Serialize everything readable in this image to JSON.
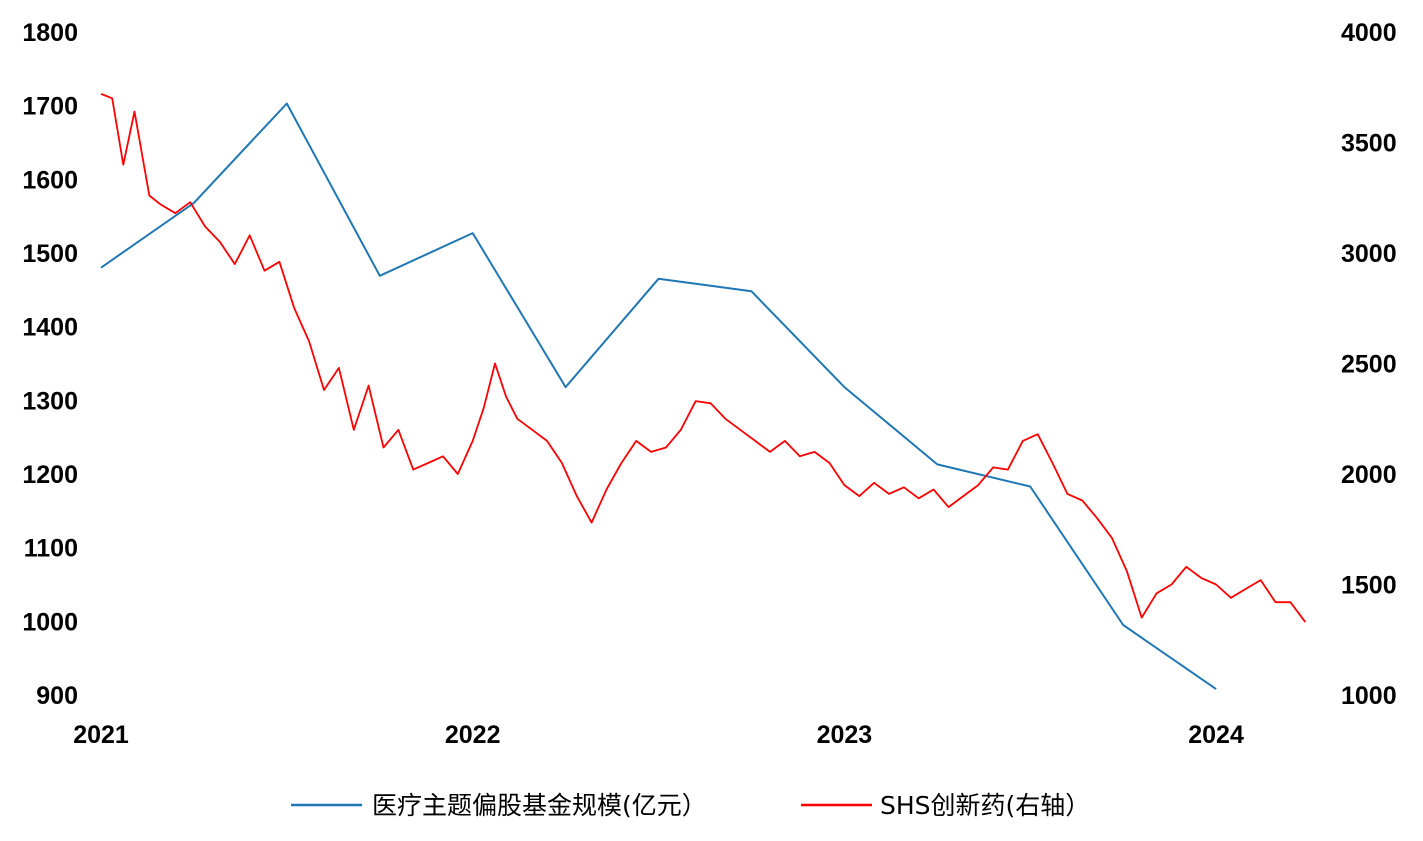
{
  "chart_data": {
    "type": "line",
    "title": "",
    "x_ticks": [
      "2021",
      "2022",
      "2023",
      "2024"
    ],
    "y_left": {
      "range": [
        900,
        1800
      ],
      "ticks": [
        900,
        1000,
        1100,
        1200,
        1300,
        1400,
        1500,
        1600,
        1700,
        1800
      ]
    },
    "y_right": {
      "range": [
        1000,
        4000
      ],
      "ticks": [
        1000,
        1500,
        2000,
        2500,
        3000,
        3500,
        4000
      ]
    },
    "series": [
      {
        "name": "医疗主题偏股基金规模(亿元）",
        "axis": "left",
        "color": "#1f77b4",
        "x": [
          2021.0,
          2021.25,
          2021.5,
          2021.75,
          2022.0,
          2022.25,
          2022.5,
          2022.75,
          2023.0,
          2023.25,
          2023.5,
          2023.75,
          2024.0
        ],
        "values": [
          1480,
          1568,
          1703,
          1469,
          1527,
          1318,
          1465,
          1448,
          1318,
          1213,
          1183,
          995,
          908
        ]
      },
      {
        "name": "SHS创新药(右轴）",
        "axis": "right",
        "color": "#ff0000",
        "x": [
          2021.0,
          2021.03,
          2021.06,
          2021.09,
          2021.13,
          2021.16,
          2021.2,
          2021.24,
          2021.28,
          2021.32,
          2021.36,
          2021.4,
          2021.44,
          2021.48,
          2021.52,
          2021.56,
          2021.6,
          2021.64,
          2021.68,
          2021.72,
          2021.76,
          2021.8,
          2021.84,
          2021.88,
          2021.92,
          2021.96,
          2022.0,
          2022.03,
          2022.06,
          2022.09,
          2022.12,
          2022.16,
          2022.2,
          2022.24,
          2022.28,
          2022.32,
          2022.36,
          2022.4,
          2022.44,
          2022.48,
          2022.52,
          2022.56,
          2022.6,
          2022.64,
          2022.68,
          2022.72,
          2022.76,
          2022.8,
          2022.84,
          2022.88,
          2022.92,
          2022.96,
          2023.0,
          2023.04,
          2023.08,
          2023.12,
          2023.16,
          2023.2,
          2023.24,
          2023.28,
          2023.32,
          2023.36,
          2023.4,
          2023.44,
          2023.48,
          2023.52,
          2023.56,
          2023.6,
          2023.64,
          2023.68,
          2023.72,
          2023.76,
          2023.8,
          2023.84,
          2023.88,
          2023.92,
          2023.96,
          2024.0,
          2024.04,
          2024.08,
          2024.12,
          2024.16,
          2024.2,
          2024.24
        ],
        "values": [
          3720,
          3700,
          3400,
          3640,
          3260,
          3220,
          3180,
          3230,
          3120,
          3050,
          2950,
          3080,
          2920,
          2960,
          2750,
          2600,
          2380,
          2480,
          2200,
          2400,
          2120,
          2200,
          2020,
          2050,
          2080,
          2000,
          2150,
          2300,
          2500,
          2350,
          2250,
          2200,
          2150,
          2050,
          1900,
          1780,
          1930,
          2050,
          2150,
          2100,
          2120,
          2200,
          2330,
          2320,
          2250,
          2200,
          2150,
          2100,
          2150,
          2080,
          2100,
          2050,
          1950,
          1900,
          1960,
          1910,
          1940,
          1890,
          1930,
          1850,
          1900,
          1950,
          2030,
          2020,
          2150,
          2180,
          2050,
          1910,
          1880,
          1800,
          1710,
          1560,
          1350,
          1460,
          1500,
          1580,
          1530,
          1500,
          1440,
          1480,
          1520,
          1420,
          1420,
          1330
        ]
      }
    ]
  }
}
